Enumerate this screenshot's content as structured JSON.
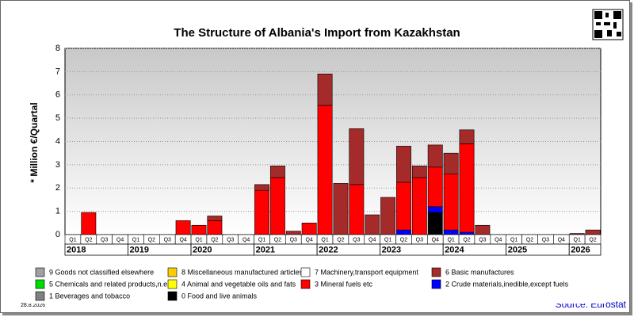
{
  "chart_data": {
    "type": "stacked-bar",
    "title": "The Structure of Albania's Import from Kazakhstan",
    "y_label": "* Million €/Quartal",
    "source": "Source: Eurostat",
    "date": "28.8.2026",
    "categories": [
      "Q1",
      "Q2",
      "Q3",
      "Q4",
      "Q1",
      "Q2",
      "Q3",
      "Q4",
      "Q1",
      "Q2",
      "Q3",
      "Q4",
      "Q1",
      "Q2",
      "Q3",
      "Q4",
      "Q1",
      "Q2",
      "Q3",
      "Q4",
      "Q1",
      "Q2",
      "Q3",
      "Q4",
      "Q1",
      "Q2",
      "Q3",
      "Q4",
      "Q1",
      "Q2",
      "Q3",
      "Q4",
      "Q1",
      "Q2"
    ],
    "years": [
      "2018",
      "2019",
      "2020",
      "2021",
      "2022",
      "2023",
      "2024",
      "2025",
      "2026"
    ],
    "ylim": [
      0,
      8
    ],
    "yticks": [
      0,
      1,
      2,
      3,
      4,
      5,
      6,
      7,
      8
    ],
    "grid": true,
    "series": [
      {
        "name": "9 Goods not classified elsewhere",
        "color": "#a0a0a0",
        "values": [
          0,
          0,
          0,
          0,
          0,
          0,
          0,
          0,
          0,
          0,
          0,
          0,
          0,
          0,
          0,
          0,
          0,
          0,
          0,
          0,
          0,
          0,
          0,
          0,
          0,
          0,
          0,
          0,
          0,
          0,
          0,
          0,
          0,
          0
        ]
      },
      {
        "name": "8 Miscellaneous manufactured articles",
        "color": "#ffcc00",
        "values": [
          0,
          0,
          0,
          0,
          0,
          0,
          0,
          0,
          0,
          0,
          0,
          0,
          0,
          0,
          0,
          0,
          0,
          0,
          0,
          0,
          0,
          0,
          0,
          0,
          0,
          0,
          0,
          0,
          0,
          0,
          0,
          0,
          0,
          0
        ]
      },
      {
        "name": "7 Machinery,transport equipment",
        "color": "#ffffff",
        "values": [
          0,
          0,
          0,
          0,
          0,
          0,
          0,
          0,
          0,
          0,
          0,
          0,
          0,
          0,
          0,
          0,
          0,
          0,
          0,
          0,
          0,
          0,
          0,
          0,
          0,
          0,
          0,
          0,
          0,
          0,
          0,
          0,
          0,
          0
        ]
      },
      {
        "name": "6 Basic manufactures",
        "color": "#a52a2a",
        "values": [
          0,
          0,
          0,
          0,
          0,
          0,
          0,
          0,
          0,
          0.2,
          0,
          0,
          0.25,
          0.5,
          0.15,
          0,
          1.35,
          2.2,
          2.4,
          0.85,
          1.6,
          1.55,
          0.5,
          0.95,
          0.9,
          0.6,
          0.4,
          0,
          0,
          0,
          0,
          0,
          0.05,
          0.2
        ]
      },
      {
        "name": "5 Chemicals and related products,n.e.s.",
        "color": "#00dd00",
        "values": [
          0,
          0,
          0,
          0,
          0,
          0,
          0,
          0,
          0,
          0,
          0,
          0,
          0,
          0,
          0,
          0,
          0,
          0,
          0,
          0,
          0,
          0,
          0,
          0,
          0,
          0,
          0,
          0,
          0,
          0,
          0,
          0,
          0,
          0
        ]
      },
      {
        "name": "4 Animal and vegetable oils and fats",
        "color": "#ffff00",
        "values": [
          0,
          0,
          0,
          0,
          0,
          0,
          0,
          0,
          0,
          0,
          0,
          0,
          0,
          0,
          0,
          0,
          0,
          0,
          0,
          0,
          0,
          0,
          0,
          0,
          0,
          0,
          0,
          0,
          0,
          0,
          0,
          0,
          0,
          0
        ]
      },
      {
        "name": "3 Mineral fuels etc",
        "color": "#ff0000",
        "values": [
          0,
          0.95,
          0,
          0,
          0,
          0,
          0,
          0.6,
          0.4,
          0.6,
          0,
          0,
          1.9,
          2.45,
          0,
          0.5,
          5.55,
          0,
          2.15,
          0,
          0,
          2.05,
          2.45,
          1.7,
          2.4,
          3.8,
          0,
          0,
          0,
          0,
          0,
          0,
          0,
          0
        ]
      },
      {
        "name": "2 Crude materials,inedible,except fuels",
        "color": "#0000ff",
        "values": [
          0,
          0,
          0,
          0,
          0,
          0,
          0,
          0,
          0,
          0,
          0,
          0,
          0,
          0,
          0,
          0,
          0,
          0,
          0,
          0,
          0,
          0.2,
          0,
          0.25,
          0.2,
          0.1,
          0,
          0,
          0,
          0,
          0,
          0,
          0,
          0
        ]
      },
      {
        "name": "1 Beverages and tobacco",
        "color": "#808080",
        "values": [
          0,
          0,
          0,
          0,
          0,
          0,
          0,
          0,
          0,
          0,
          0,
          0,
          0,
          0,
          0,
          0,
          0,
          0,
          0,
          0,
          0,
          0,
          0,
          0,
          0,
          0,
          0,
          0,
          0,
          0,
          0,
          0,
          0,
          0
        ]
      },
      {
        "name": "0 Food and live animals",
        "color": "#000000",
        "values": [
          0,
          0,
          0,
          0,
          0,
          0,
          0,
          0,
          0,
          0,
          0,
          0,
          0,
          0,
          0,
          0,
          0,
          0,
          0,
          0,
          0,
          0,
          0,
          0.95,
          0,
          0,
          0,
          0,
          0,
          0,
          0,
          0,
          0,
          0
        ]
      }
    ]
  }
}
